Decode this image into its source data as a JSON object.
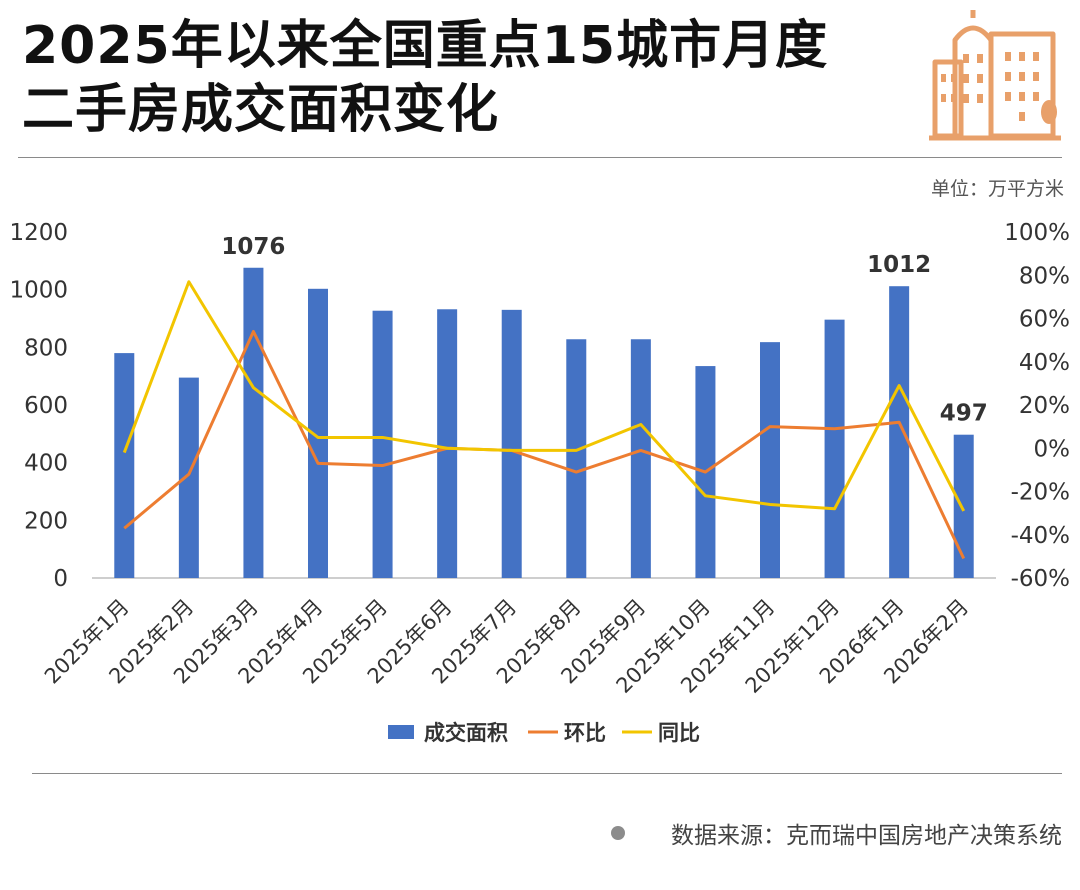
{
  "header": {
    "title_line1": "2025年以来全国重点15城市月度",
    "title_line2": "二手房成交面积变化",
    "unit": "单位：万平方米"
  },
  "footer": {
    "source": "数据来源：克而瑞中国房地产决策系统"
  },
  "icons": {
    "logo": "city-buildings-icon",
    "source_bullet": "dot-icon"
  },
  "colors": {
    "bar": "#4472c4",
    "mom_line": "#ed7d31",
    "yoy_line": "#f2c500",
    "logo": "#e8a06a"
  },
  "chart_data": {
    "type": "bar",
    "categories": [
      "2025年1月",
      "2025年2月",
      "2025年3月",
      "2025年4月",
      "2025年5月",
      "2025年6月",
      "2025年7月",
      "2025年8月",
      "2025年9月",
      "2025年10月",
      "2025年11月",
      "2025年12月",
      "2026年1月",
      "2026年2月"
    ],
    "series": [
      {
        "name": "成交面积",
        "type": "bar",
        "axis": "left",
        "values": [
          780,
          695,
          1076,
          1003,
          927,
          932,
          930,
          828,
          828,
          735,
          818,
          896,
          1012,
          497
        ]
      },
      {
        "name": "环比",
        "type": "line",
        "axis": "right",
        "values": [
          -37,
          -12,
          54,
          -7,
          -8,
          0,
          -1,
          -11,
          -1,
          -11,
          10,
          9,
          12,
          -51
        ]
      },
      {
        "name": "同比",
        "type": "line",
        "axis": "right",
        "values": [
          -2,
          77,
          28,
          5,
          5,
          0,
          -1,
          -1,
          11,
          -22,
          -26,
          -28,
          29,
          -29
        ]
      }
    ],
    "data_labels": [
      {
        "index": 2,
        "text": "1076"
      },
      {
        "index": 12,
        "text": "1012"
      },
      {
        "index": 13,
        "text": "497"
      }
    ],
    "left_axis": {
      "ylim": [
        0,
        1200
      ],
      "ticks": [
        "0",
        "200",
        "400",
        "600",
        "800",
        "1000",
        "1200"
      ]
    },
    "right_axis": {
      "ylim": [
        -60,
        100
      ],
      "ticks": [
        "-60%",
        "-40%",
        "-20%",
        "0%",
        "20%",
        "40%",
        "60%",
        "80%",
        "100%"
      ]
    },
    "grid": false,
    "legend": {
      "position": "bottom",
      "entries": [
        "成交面积",
        "环比",
        "同比"
      ]
    }
  }
}
